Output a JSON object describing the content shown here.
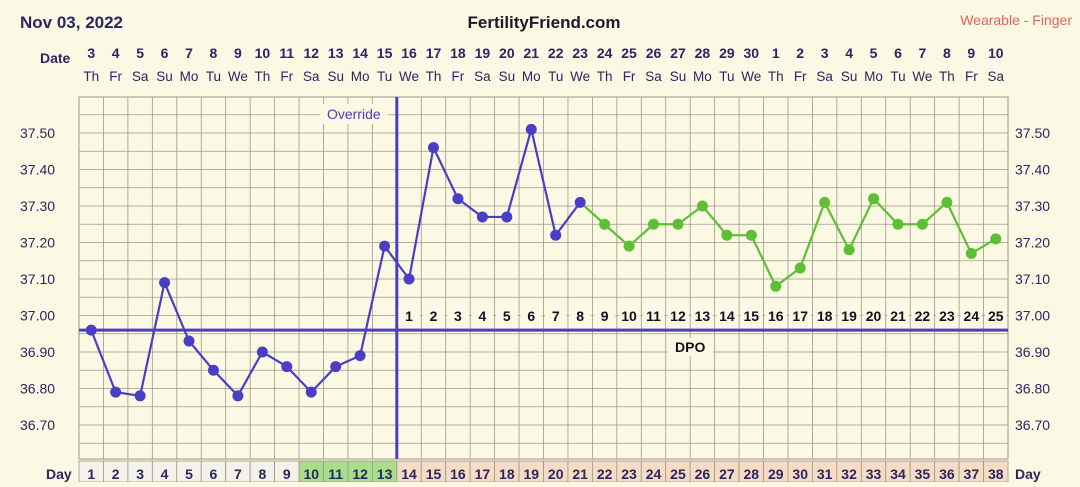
{
  "header": {
    "date": "Nov 03, 2022",
    "site": "FertilityFriend.com",
    "source": "Wearable - Finger"
  },
  "labels": {
    "date_row": "Date",
    "day_row": "Day",
    "override": "Override",
    "dpo": "DPO"
  },
  "colors": {
    "background": "#fbf8e3",
    "grid": "#9a9a88",
    "pre_ovulation_line": "#4a3fc4",
    "post_ovulation_line": "#5cbf34",
    "text": "#2a2660",
    "source_text": "#e0645a",
    "fertile_day_fill": "#a8dd8a",
    "luteal_day_fill": "#f6dcc4",
    "follicular_day_fill": "#f4f2ea"
  },
  "chart_data": {
    "type": "line",
    "title": "FertilityFriend.com",
    "dates": [
      "3",
      "4",
      "5",
      "6",
      "7",
      "8",
      "9",
      "10",
      "11",
      "12",
      "13",
      "14",
      "15",
      "16",
      "17",
      "18",
      "19",
      "20",
      "21",
      "22",
      "23",
      "24",
      "25",
      "26",
      "27",
      "28",
      "29",
      "30",
      "1",
      "2",
      "3",
      "4",
      "5",
      "6",
      "7",
      "8",
      "9",
      "10"
    ],
    "weekdays": [
      "Th",
      "Fr",
      "Sa",
      "Su",
      "Mo",
      "Tu",
      "We",
      "Th",
      "Fr",
      "Sa",
      "Su",
      "Mo",
      "Tu",
      "We",
      "Th",
      "Fr",
      "Sa",
      "Su",
      "Mo",
      "Tu",
      "We",
      "Th",
      "Fr",
      "Sa",
      "Su",
      "Mo",
      "Tu",
      "We",
      "Th",
      "Fr",
      "Sa",
      "Su",
      "Mo",
      "Tu",
      "We",
      "Th",
      "Fr",
      "Sa"
    ],
    "cycle_days": [
      1,
      2,
      3,
      4,
      5,
      6,
      7,
      8,
      9,
      10,
      11,
      12,
      13,
      14,
      15,
      16,
      17,
      18,
      19,
      20,
      21,
      22,
      23,
      24,
      25,
      26,
      27,
      28,
      29,
      30,
      31,
      32,
      33,
      34,
      35,
      36,
      37,
      38
    ],
    "temperatures": [
      36.96,
      36.79,
      36.78,
      37.09,
      36.93,
      36.85,
      36.78,
      36.9,
      36.86,
      36.79,
      36.86,
      36.89,
      37.19,
      37.1,
      37.46,
      37.32,
      37.27,
      37.27,
      37.51,
      37.22,
      37.31,
      37.25,
      37.19,
      37.25,
      37.25,
      37.3,
      37.22,
      37.22,
      37.08,
      37.13,
      37.31,
      37.18,
      37.32,
      37.25,
      37.25,
      37.31,
      37.17,
      37.21
    ],
    "dpo_labels": [
      "1",
      "2",
      "3",
      "4",
      "5",
      "6",
      "7",
      "8",
      "9",
      "10",
      "11",
      "12",
      "13",
      "14",
      "15",
      "16",
      "17",
      "18",
      "19",
      "20",
      "21",
      "22",
      "23",
      "24",
      "25"
    ],
    "dpo_start_day": 14,
    "ovulation_day": 13,
    "coverline": 36.96,
    "green_from_day": 21,
    "fertile_days": [
      10,
      11,
      12,
      13
    ],
    "y_ticks": [
      "37.50",
      "37.40",
      "37.30",
      "37.20",
      "37.10",
      "37.00",
      "36.90",
      "36.80",
      "36.70"
    ],
    "ylim": [
      36.62,
      37.63
    ],
    "grid": true
  }
}
